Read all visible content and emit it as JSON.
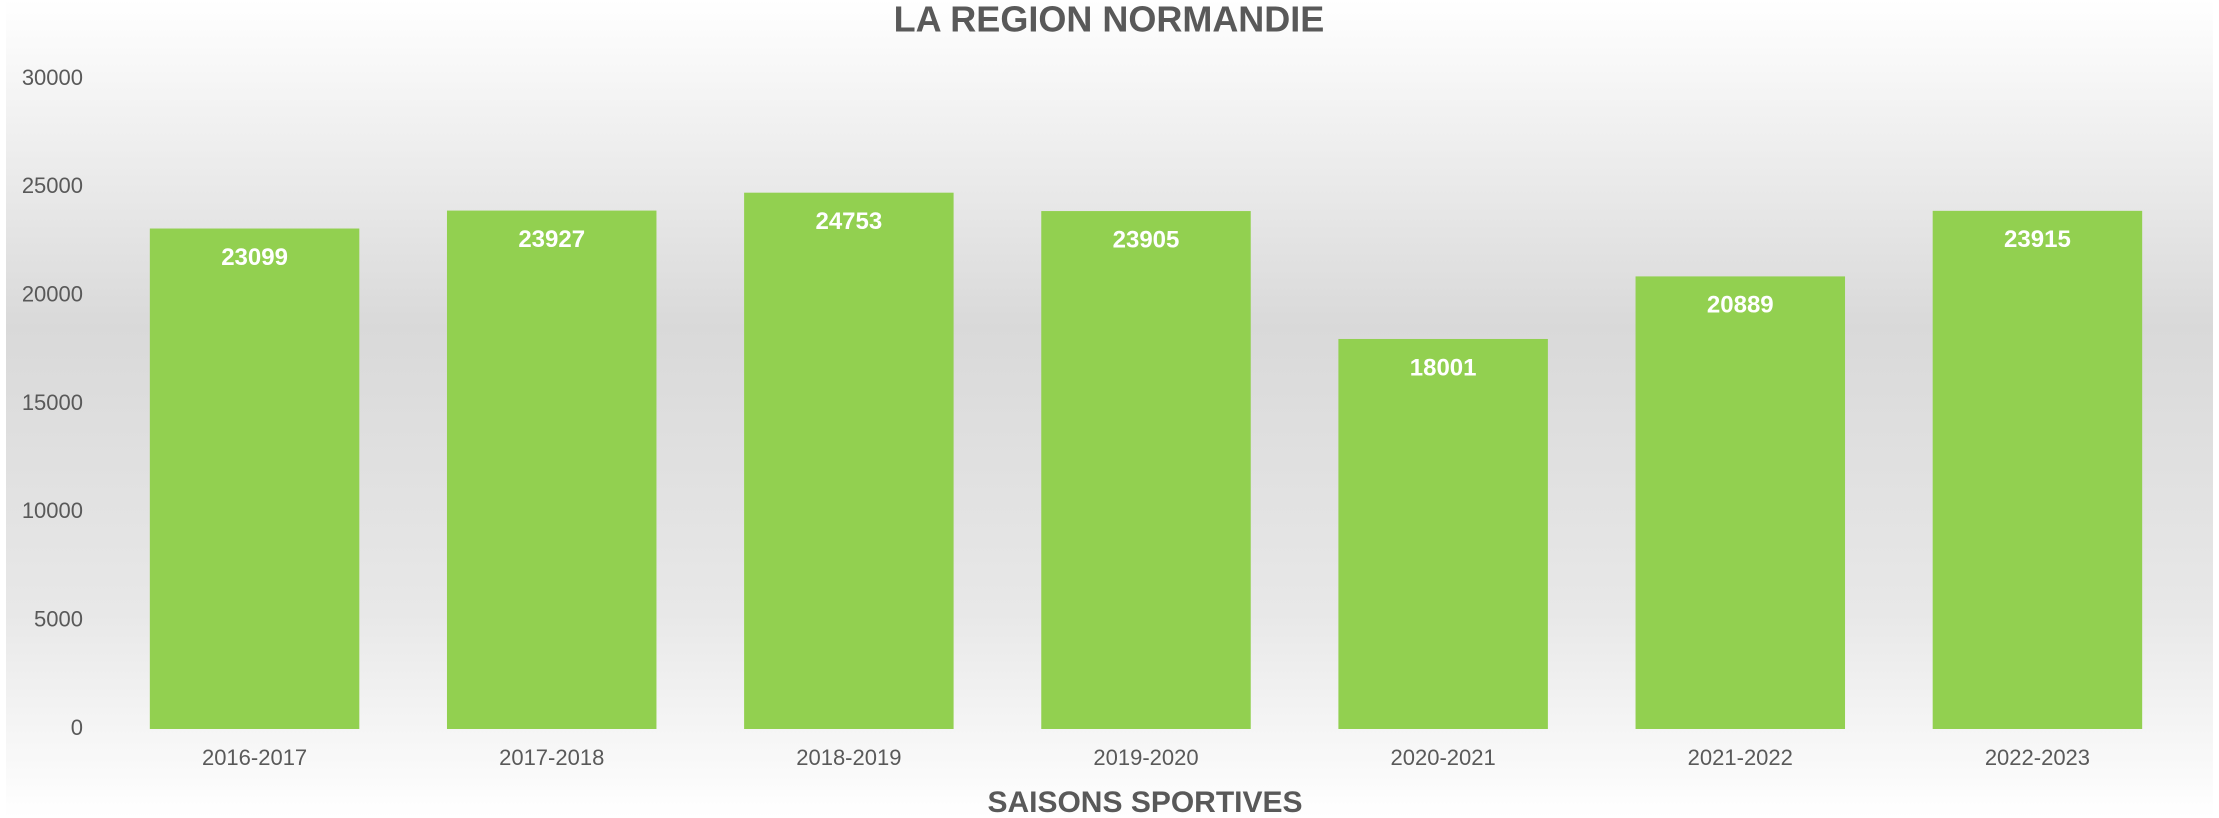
{
  "chart_data": {
    "type": "bar",
    "title": "LA REGION NORMANDIE",
    "x_label": "SAISONS SPORTIVES",
    "categories": [
      "2016-2017",
      "2017-2018",
      "2018-2019",
      "2019-2020",
      "2020-2021",
      "2021-2022",
      "2022-2023"
    ],
    "values": [
      23099,
      23927,
      24753,
      23905,
      18001,
      20889,
      23915
    ],
    "color": "#92d050",
    "ylim": [
      0,
      30000
    ],
    "yticks": [
      0,
      5000,
      10000,
      15000,
      20000,
      25000,
      30000
    ],
    "grid": false,
    "data_labels": true
  }
}
